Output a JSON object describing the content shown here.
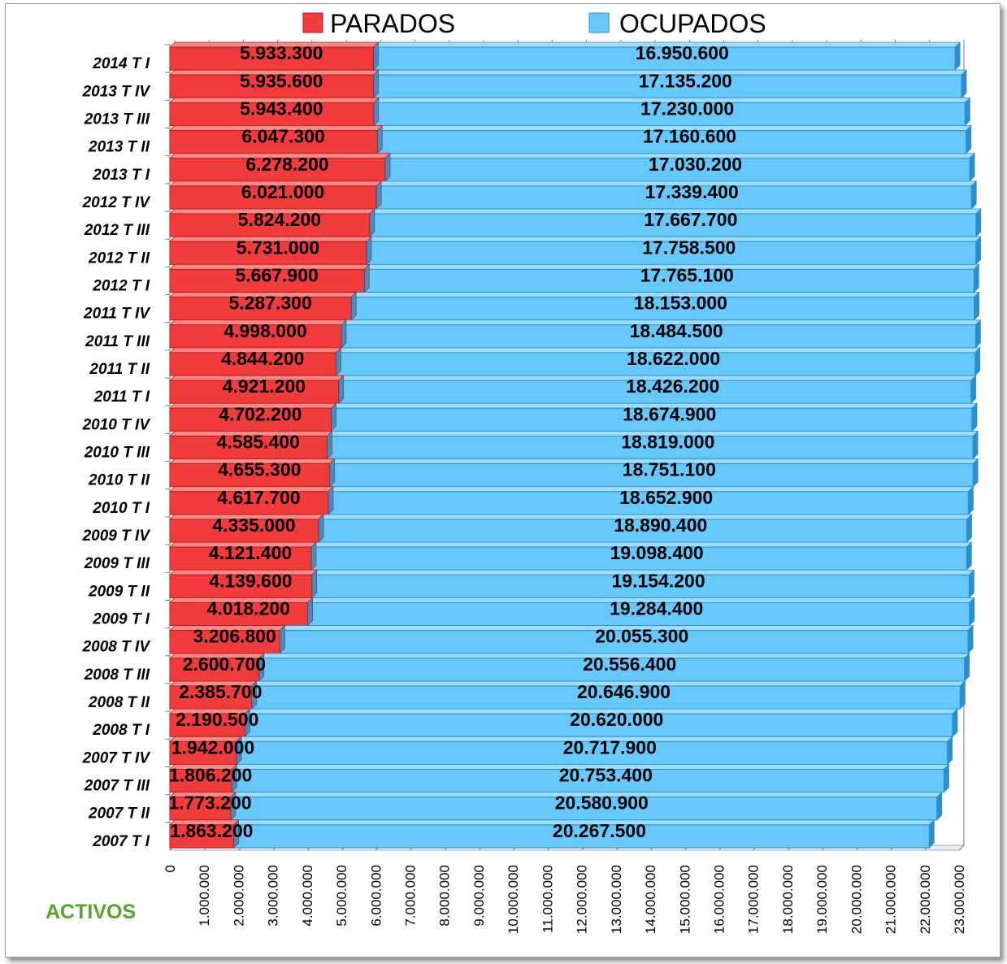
{
  "colors": {
    "parados": "#f23b3b",
    "parados_dark": "#b51c1c",
    "ocupados": "#66c8fb",
    "ocupados_dark": "#2a8fcf",
    "activos_text": "#5aa42c"
  },
  "footer_label": "ACTIVOS",
  "chart_data": {
    "type": "bar",
    "orientation": "horizontal",
    "stacked": true,
    "xlim": [
      0,
      23000000
    ],
    "x_ticks": [
      "0",
      "1.000.000",
      "2.000.000",
      "3.000.000",
      "4.000.000",
      "5.000.000",
      "6.000.000",
      "7.000.000",
      "8.000.000",
      "9.000.000",
      "10.000.000",
      "11.000.000",
      "12.000.000",
      "13.000.000",
      "14.000.000",
      "15.000.000",
      "16.000.000",
      "17.000.000",
      "18.000.000",
      "19.000.000",
      "20.000.000",
      "21.000.000",
      "22.000.000",
      "23.000.000"
    ],
    "grid": true,
    "legend_position": "top",
    "categories": [
      "2014 T I",
      "2013 T IV",
      "2013 T III",
      "2013 T II",
      "2013 T I",
      "2012 T IV",
      "2012 T III",
      "2012 T II",
      "2012 T I",
      "2011 T IV",
      "2011 T III",
      "2011 T II",
      "2011 T I",
      "2010 T IV",
      "2010 T III",
      "2010 T II",
      "2010 T I",
      "2009 T IV",
      "2009 T III",
      "2009 T II",
      "2009 T I",
      "2008 T IV",
      "2008 T III",
      "2008 T II",
      "2008 T I",
      "2007 T IV",
      "2007 T III",
      "2007 T II",
      "2007 T I"
    ],
    "series": [
      {
        "name": "PARADOS",
        "values": [
          5933300,
          5935600,
          5943400,
          6047300,
          6278200,
          6021000,
          5824200,
          5731000,
          5667900,
          5287300,
          4998000,
          4844200,
          4921200,
          4702200,
          4585400,
          4655300,
          4617700,
          4335000,
          4121400,
          4139600,
          4018200,
          3206800,
          2600700,
          2385700,
          2190500,
          1942000,
          1806200,
          1773200,
          1863200
        ],
        "labels": [
          "5.933.300",
          "5.935.600",
          "5.943.400",
          "6.047.300",
          "6.278.200",
          "6.021.000",
          "5.824.200",
          "5.731.000",
          "5.667.900",
          "5.287.300",
          "4.998.000",
          "4.844.200",
          "4.921.200",
          "4.702.200",
          "4.585.400",
          "4.655.300",
          "4.617.700",
          "4.335.000",
          "4.121.400",
          "4.139.600",
          "4.018.200",
          "3.206.800",
          "2.600.700",
          "2.385.700",
          "2.190.500",
          "1.942.000",
          "1.806.200",
          "1.773.200",
          "1.863.200"
        ]
      },
      {
        "name": "OCUPADOS",
        "values": [
          16950600,
          17135200,
          17230000,
          17160600,
          17030200,
          17339400,
          17667700,
          17758500,
          17765100,
          18153000,
          18484500,
          18622000,
          18426200,
          18674900,
          18819000,
          18751100,
          18652900,
          18890400,
          19098400,
          19154200,
          19284400,
          20055300,
          20556400,
          20646900,
          20620000,
          20717900,
          20753400,
          20580900,
          20267500
        ],
        "labels": [
          "16.950.600",
          "17.135.200",
          "17.230.000",
          "17.160.600",
          "17.030.200",
          "17.339.400",
          "17.667.700",
          "17.758.500",
          "17.765.100",
          "18.153.000",
          "18.484.500",
          "18.622.000",
          "18.426.200",
          "18.674.900",
          "18.819.000",
          "18.751.100",
          "18.652.900",
          "18.890.400",
          "19.098.400",
          "19.154.200",
          "19.284.400",
          "20.055.300",
          "20.556.400",
          "20.646.900",
          "20.620.000",
          "20.717.900",
          "20.753.400",
          "20.580.900",
          "20.267.500"
        ]
      }
    ]
  }
}
